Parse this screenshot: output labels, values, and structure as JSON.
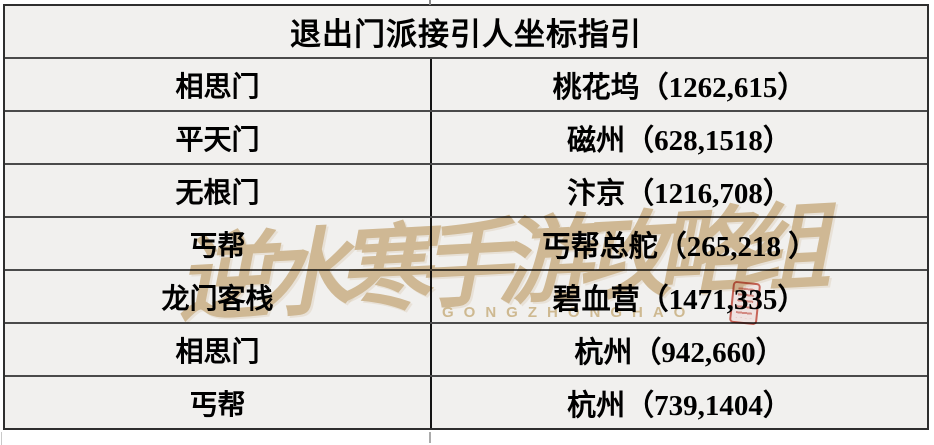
{
  "table": {
    "title": "退出门派接引人坐标指引",
    "rows": [
      {
        "sect": "相思门",
        "location": "桃花坞（1262,615）"
      },
      {
        "sect": "平天门",
        "location": "磁州（628,1518）"
      },
      {
        "sect": "无根门",
        "location": "汴京（1216,708）"
      },
      {
        "sect": "丐帮",
        "location": "丐帮总舵（265,218 ）"
      },
      {
        "sect": "龙门客栈",
        "location": "碧血营（1471,335）"
      },
      {
        "sect": "相思门",
        "location": "杭州（942,660）"
      },
      {
        "sect": "丐帮",
        "location": "杭州（739,1404）"
      }
    ]
  },
  "watermark": {
    "text": "逆水寒手游攻略组",
    "subtext": "GONGZHONGHAO",
    "gold_color": "#d3b88a",
    "seal_color": "#c64335"
  },
  "colors": {
    "cell_background": "#f1f0ee",
    "outer_border": "#2e2e2e",
    "row_divider": "#4a4a4a",
    "column_divider": "#141414",
    "text": "#000000"
  }
}
